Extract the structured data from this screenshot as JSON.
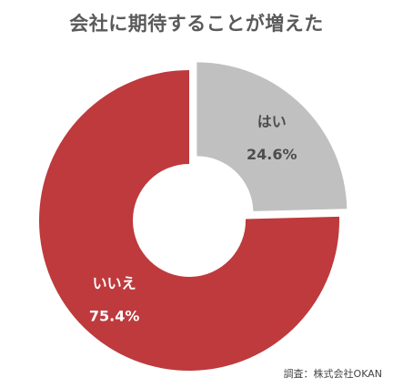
{
  "chart_data": {
    "type": "pie",
    "title": "会社に期待することが増えた",
    "slices": [
      {
        "name": "はい",
        "value": 24.6,
        "value_label": "24.6%",
        "color": "#c0c0c0",
        "label_color": "#4d4d4d",
        "exploded": true
      },
      {
        "name": "いいえ",
        "value": 75.4,
        "value_label": "75.4%",
        "color": "#be3a3d",
        "label_color": "#ffffff",
        "exploded": false
      }
    ],
    "donut": true,
    "background": "#ffffff"
  },
  "source": "調査：株式会社OKAN"
}
